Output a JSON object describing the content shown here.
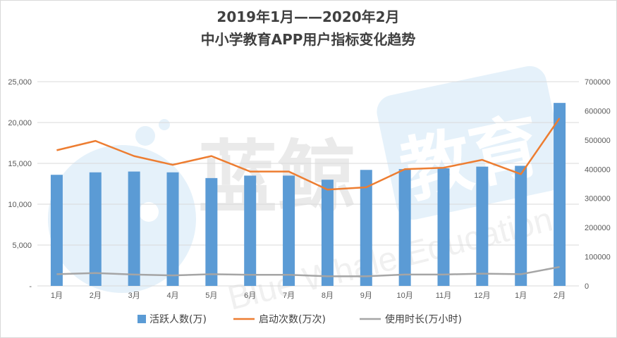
{
  "chart_data": {
    "type": "bar+line",
    "title_line1": "2019年1月——2020年2月",
    "title_line2": "中小学教育APP用户指标变化趋势",
    "categories": [
      "1月",
      "2月",
      "3月",
      "4月",
      "5月",
      "6月",
      "7月",
      "8月",
      "9月",
      "10月",
      "11月",
      "12月",
      "1月",
      "2月"
    ],
    "left_axis": {
      "ticks": [
        "-",
        "5,000",
        "10,000",
        "15,000",
        "20,000",
        "25,000"
      ],
      "ylim": [
        0,
        25000
      ]
    },
    "right_axis": {
      "ticks": [
        "0",
        "100000",
        "200000",
        "300000",
        "400000",
        "500000",
        "600000",
        "700000"
      ],
      "ylim": [
        0,
        700000
      ]
    },
    "series": [
      {
        "name": "活跃人数(万)",
        "type": "bar",
        "axis": "left",
        "values": [
          13600,
          13900,
          14000,
          13900,
          13200,
          13500,
          13500,
          13000,
          14200,
          14300,
          14400,
          14600,
          14700,
          22400
        ]
      },
      {
        "name": "启动次数(万次)",
        "type": "line",
        "axis": "right",
        "values": [
          465000,
          497000,
          445000,
          415000,
          445000,
          392000,
          392000,
          330000,
          338000,
          400000,
          405000,
          432000,
          383000,
          575000
        ]
      },
      {
        "name": "使用时长(万小时)",
        "type": "line",
        "axis": "right",
        "values": [
          40000,
          44000,
          39000,
          36000,
          40000,
          38000,
          38000,
          33000,
          33000,
          39000,
          39000,
          42000,
          40000,
          65000
        ]
      }
    ],
    "colors": {
      "bar": "#5b9bd5",
      "line1": "#ed7d31",
      "line2": "#a5a5a5",
      "grid": "#d9d9d9"
    },
    "legend_position": "bottom"
  },
  "watermark": {
    "cn": "蓝鲸",
    "badge": "教育",
    "en": "Blue Whale Education"
  }
}
